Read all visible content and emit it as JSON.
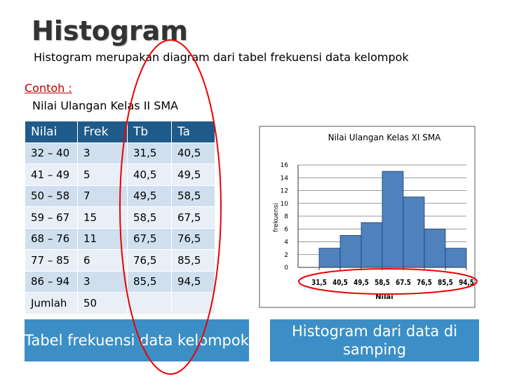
{
  "header": {
    "title": "Histogram",
    "subtitle": "Histogram merupakan diagram dari tabel frekuensi data kelompok"
  },
  "example": {
    "label": "Contoh :",
    "caption": "Nilai Ulangan Kelas II SMA"
  },
  "table": {
    "columns": [
      "Nilai",
      "Frek",
      "Tb",
      "Ta"
    ],
    "rows": [
      [
        "32 – 40",
        "3",
        "31,5",
        "40,5"
      ],
      [
        "41 – 49",
        "5",
        "40,5",
        "49,5"
      ],
      [
        "50 – 58",
        "7",
        "49,5",
        "58,5"
      ],
      [
        "59 – 67",
        "15",
        "58,5",
        "67,5"
      ],
      [
        "68 – 76",
        "11",
        "67,5",
        "76,5"
      ],
      [
        "77 – 85",
        "6",
        "76,5",
        "85,5"
      ],
      [
        "86 – 94",
        "3",
        "85,5",
        "94,5"
      ]
    ],
    "footer": [
      "Jumlah",
      "50"
    ]
  },
  "chart_data": {
    "type": "histogram",
    "title": "Nilai Ulangan Kelas XI SMA",
    "x_label": "Nilai",
    "y_label": "frekuensi",
    "bins": [
      31.5,
      40.5,
      49.5,
      58.5,
      67.5,
      76.5,
      85.5,
      94.5
    ],
    "values": [
      3,
      5,
      7,
      15,
      11,
      6,
      3
    ],
    "color": "#4f81bd",
    "xlim": [
      22.5,
      94.5
    ],
    "xticks": [
      {
        "value": 31.5,
        "label": "31,5"
      },
      {
        "value": 40.5,
        "label": "40,5"
      },
      {
        "value": 49.5,
        "label": "49,5"
      },
      {
        "value": 58.5,
        "label": "58,5"
      },
      {
        "value": 67.5,
        "label": "67.5"
      },
      {
        "value": 76.5,
        "label": "76,5"
      },
      {
        "value": 85.5,
        "label": "85,5"
      },
      {
        "value": 94.5,
        "label": "94,5"
      }
    ],
    "ylim": [
      0,
      16
    ],
    "yticks": [
      0,
      2,
      4,
      6,
      8,
      10,
      12,
      14,
      16
    ],
    "grid": true
  },
  "captions": [
    "Tabel frekuensi data kelompok",
    "Histogram dari data di samping"
  ]
}
